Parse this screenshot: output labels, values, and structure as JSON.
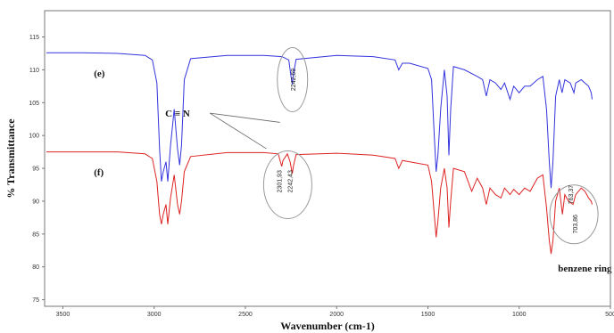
{
  "chart_data": {
    "type": "line",
    "xlabel": "Wavenumber (cm-1)",
    "ylabel": "% Transmittance",
    "xlim": [
      3600,
      500
    ],
    "ylim": [
      74,
      119
    ],
    "x_ticks": [
      "3500",
      "3000",
      "2500",
      "2000",
      "1500",
      "1000",
      "500"
    ],
    "x_tick_values": [
      3500,
      3000,
      2500,
      2000,
      1500,
      1000,
      500
    ],
    "y_ticks": [
      "75",
      "80",
      "85",
      "90",
      "95",
      "100",
      "105",
      "110",
      "115"
    ],
    "y_tick_values": [
      75,
      80,
      85,
      90,
      95,
      100,
      105,
      110,
      115
    ],
    "grid": false,
    "series": [
      {
        "name": "(e)",
        "color": "#3333dd",
        "points": [
          [
            3590,
            112.6
          ],
          [
            3400,
            112.6
          ],
          [
            3200,
            112.5
          ],
          [
            3050,
            112.2
          ],
          [
            3010,
            111.5
          ],
          [
            2985,
            108.0
          ],
          [
            2970,
            98.0
          ],
          [
            2960,
            93.0
          ],
          [
            2950,
            94.5
          ],
          [
            2935,
            96.0
          ],
          [
            2925,
            93.0
          ],
          [
            2910,
            98.5
          ],
          [
            2890,
            104.0
          ],
          [
            2872,
            98.0
          ],
          [
            2860,
            95.5
          ],
          [
            2850,
            98.5
          ],
          [
            2835,
            108.5
          ],
          [
            2800,
            111.7
          ],
          [
            2600,
            112.2
          ],
          [
            2400,
            112.2
          ],
          [
            2300,
            112.0
          ],
          [
            2262,
            111.5
          ],
          [
            2250,
            109.0
          ],
          [
            2243,
            107.8
          ],
          [
            2236,
            109.5
          ],
          [
            2222,
            111.6
          ],
          [
            2000,
            112.2
          ],
          [
            1800,
            112.0
          ],
          [
            1680,
            111.5
          ],
          [
            1660,
            110.0
          ],
          [
            1640,
            111.0
          ],
          [
            1600,
            111.0
          ],
          [
            1500,
            110.2
          ],
          [
            1480,
            108.5
          ],
          [
            1465,
            100.0
          ],
          [
            1455,
            94.5
          ],
          [
            1445,
            97.0
          ],
          [
            1430,
            104.0
          ],
          [
            1410,
            110.0
          ],
          [
            1395,
            106.0
          ],
          [
            1385,
            97.0
          ],
          [
            1375,
            104.0
          ],
          [
            1360,
            110.5
          ],
          [
            1300,
            110.0
          ],
          [
            1230,
            109.0
          ],
          [
            1200,
            108.5
          ],
          [
            1180,
            106.0
          ],
          [
            1160,
            108.5
          ],
          [
            1130,
            108.0
          ],
          [
            1100,
            107.0
          ],
          [
            1080,
            108.0
          ],
          [
            1050,
            105.5
          ],
          [
            1030,
            107.5
          ],
          [
            1000,
            106.5
          ],
          [
            970,
            107.5
          ],
          [
            940,
            107.5
          ],
          [
            900,
            108.5
          ],
          [
            870,
            109.0
          ],
          [
            850,
            104.0
          ],
          [
            835,
            96.0
          ],
          [
            825,
            92.0
          ],
          [
            815,
            96.0
          ],
          [
            800,
            106.0
          ],
          [
            780,
            108.5
          ],
          [
            765,
            106.5
          ],
          [
            750,
            108.5
          ],
          [
            720,
            108.0
          ],
          [
            700,
            106.5
          ],
          [
            690,
            108.0
          ],
          [
            660,
            108.5
          ],
          [
            640,
            108.0
          ],
          [
            620,
            107.5
          ],
          [
            605,
            106.5
          ],
          [
            600,
            105.5
          ]
        ]
      },
      {
        "name": "(f)",
        "color": "#dd2222",
        "points": [
          [
            3590,
            97.5
          ],
          [
            3400,
            97.5
          ],
          [
            3200,
            97.5
          ],
          [
            3050,
            97.2
          ],
          [
            3010,
            96.5
          ],
          [
            2985,
            93.0
          ],
          [
            2970,
            88.0
          ],
          [
            2960,
            86.5
          ],
          [
            2950,
            88.0
          ],
          [
            2935,
            89.5
          ],
          [
            2925,
            86.5
          ],
          [
            2910,
            90.5
          ],
          [
            2890,
            94.0
          ],
          [
            2872,
            89.5
          ],
          [
            2860,
            88.0
          ],
          [
            2850,
            90.0
          ],
          [
            2835,
            94.5
          ],
          [
            2800,
            96.8
          ],
          [
            2600,
            97.4
          ],
          [
            2400,
            97.4
          ],
          [
            2320,
            97.2
          ],
          [
            2308,
            96.0
          ],
          [
            2301,
            95.3
          ],
          [
            2294,
            96.2
          ],
          [
            2270,
            97.2
          ],
          [
            2255,
            96.0
          ],
          [
            2243,
            94.2
          ],
          [
            2236,
            95.5
          ],
          [
            2222,
            97.1
          ],
          [
            2000,
            97.3
          ],
          [
            1800,
            97.0
          ],
          [
            1680,
            96.5
          ],
          [
            1660,
            95.0
          ],
          [
            1640,
            96.2
          ],
          [
            1600,
            96.0
          ],
          [
            1500,
            95.5
          ],
          [
            1480,
            93.0
          ],
          [
            1465,
            88.0
          ],
          [
            1455,
            84.5
          ],
          [
            1445,
            87.0
          ],
          [
            1430,
            92.0
          ],
          [
            1410,
            95.0
          ],
          [
            1395,
            92.0
          ],
          [
            1385,
            86.0
          ],
          [
            1375,
            90.0
          ],
          [
            1360,
            95.0
          ],
          [
            1300,
            94.5
          ],
          [
            1260,
            91.5
          ],
          [
            1230,
            93.5
          ],
          [
            1200,
            92.0
          ],
          [
            1180,
            89.5
          ],
          [
            1160,
            92.0
          ],
          [
            1130,
            91.0
          ],
          [
            1100,
            90.5
          ],
          [
            1080,
            92.0
          ],
          [
            1050,
            91.0
          ],
          [
            1030,
            91.8
          ],
          [
            1000,
            91.0
          ],
          [
            970,
            92.0
          ],
          [
            940,
            91.5
          ],
          [
            900,
            93.5
          ],
          [
            870,
            94.0
          ],
          [
            850,
            89.0
          ],
          [
            835,
            84.0
          ],
          [
            825,
            82.0
          ],
          [
            815,
            84.0
          ],
          [
            800,
            90.0
          ],
          [
            780,
            92.0
          ],
          [
            763,
            88.0
          ],
          [
            750,
            91.0
          ],
          [
            730,
            90.0
          ],
          [
            705,
            89.5
          ],
          [
            690,
            91.0
          ],
          [
            660,
            92.0
          ],
          [
            640,
            91.5
          ],
          [
            620,
            90.5
          ],
          [
            605,
            90.0
          ],
          [
            600,
            89.5
          ]
        ]
      }
    ],
    "annotations": {
      "bond": "C ≡ N",
      "ring": "benzene ring",
      "peaks": [
        {
          "text": "2242,69",
          "x": 2225,
          "y": 108.5
        },
        {
          "text": "2301,93",
          "x": 2302,
          "y": 93
        },
        {
          "text": "2242,43",
          "x": 2242,
          "y": 93
        },
        {
          "text": "763,37",
          "x": 705,
          "y": 91
        },
        {
          "text": "703,86",
          "x": 680,
          "y": 86.5
        }
      ]
    }
  }
}
